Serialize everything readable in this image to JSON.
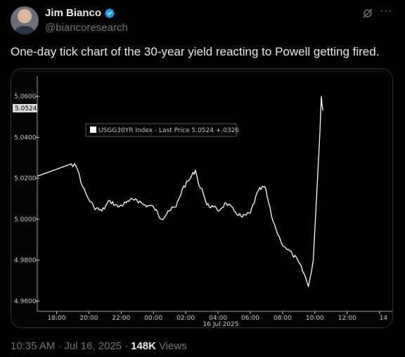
{
  "tweet": {
    "author_name": "Jim Bianco",
    "handle": "@biancoresearch",
    "text": "One-day tick chart of the 30-year yield reacting to Powell getting fired.",
    "time": "10:35 AM",
    "separator": "·",
    "date": "Jul 16, 2025",
    "views_count": "148K",
    "views_label": "Views",
    "more_icon": "···"
  },
  "chart_data": {
    "type": "line",
    "title": "",
    "xlabel": "16 Jul 2025",
    "ylabel": "",
    "legend": "USGG30YR Index - Last Price 5.0524 +.0326",
    "last_price_label": "5.0524",
    "ylim": [
      4.955,
      5.07
    ],
    "xlim": [
      16.8,
      38.8
    ],
    "y_ticks": [
      {
        "value": 5.06,
        "label": "5.0600"
      },
      {
        "value": 5.04,
        "label": "5.0400"
      },
      {
        "value": 5.02,
        "label": "5.0200"
      },
      {
        "value": 5.0,
        "label": "5.0000"
      },
      {
        "value": 4.98,
        "label": "4.9800"
      },
      {
        "value": 4.96,
        "label": "4.9600"
      }
    ],
    "x_ticks": [
      {
        "value": 18,
        "label": "18:00"
      },
      {
        "value": 20,
        "label": "20:00"
      },
      {
        "value": 22,
        "label": "22:00"
      },
      {
        "value": 24,
        "label": "00:00"
      },
      {
        "value": 26,
        "label": "02:00"
      },
      {
        "value": 28,
        "label": "04:00"
      },
      {
        "value": 30,
        "label": "06:00"
      },
      {
        "value": 32,
        "label": "08:00"
      },
      {
        "value": 34,
        "label": "10:00"
      },
      {
        "value": 36,
        "label": "12:00"
      },
      {
        "value": 38,
        "label": "14"
      }
    ],
    "series": [
      {
        "name": "USGG30YR Index",
        "x": [
          16.8,
          18.9,
          19.2,
          19.4,
          19.6,
          19.9,
          20.3,
          20.8,
          21.3,
          21.8,
          22.3,
          22.9,
          23.4,
          24.0,
          24.5,
          24.9,
          25.4,
          25.8,
          26.2,
          26.6,
          26.8,
          27.0,
          27.3,
          27.7,
          28.0,
          28.5,
          29.0,
          29.5,
          30.0,
          30.5,
          30.9,
          31.3,
          31.6,
          31.9,
          32.2,
          32.6,
          33.0,
          33.4,
          33.6,
          33.9,
          34.1,
          34.3,
          34.4,
          34.5
        ],
        "y": [
          5.021,
          5.027,
          5.026,
          5.022,
          5.016,
          5.011,
          5.006,
          5.004,
          5.009,
          5.006,
          5.008,
          5.01,
          5.007,
          5.006,
          5.0,
          5.004,
          5.006,
          5.015,
          5.019,
          5.024,
          5.017,
          5.015,
          5.007,
          5.006,
          5.004,
          5.008,
          5.004,
          5.001,
          5.003,
          5.014,
          5.016,
          5.002,
          4.995,
          4.989,
          4.986,
          4.983,
          4.979,
          4.972,
          4.967,
          4.98,
          5.01,
          5.04,
          5.06,
          5.053
        ]
      }
    ]
  }
}
